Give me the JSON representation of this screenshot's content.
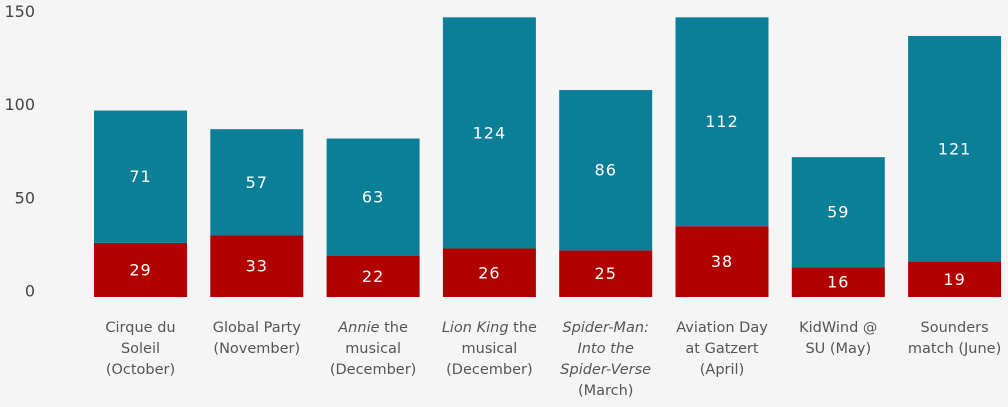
{
  "chart_data": {
    "type": "bar",
    "stacked": true,
    "title": "",
    "xlabel": "",
    "ylabel": "",
    "ylim": [
      0,
      155
    ],
    "yticks": [
      0,
      50,
      100,
      150
    ],
    "grid": false,
    "legend": "none",
    "categories": [
      {
        "lines": [
          [
            {
              "t": "Cirque du",
              "i": false
            }
          ],
          [
            {
              "t": "Soleil",
              "i": false
            }
          ],
          [
            {
              "t": "(October)",
              "i": false
            }
          ]
        ]
      },
      {
        "lines": [
          [
            {
              "t": "Global Party",
              "i": false
            }
          ],
          [
            {
              "t": "(November)",
              "i": false
            }
          ]
        ]
      },
      {
        "lines": [
          [
            {
              "t": "Annie",
              "i": true
            },
            {
              "t": " the",
              "i": false
            }
          ],
          [
            {
              "t": "musical",
              "i": false
            }
          ],
          [
            {
              "t": "(December)",
              "i": false
            }
          ]
        ]
      },
      {
        "lines": [
          [
            {
              "t": "Lion King",
              "i": true
            },
            {
              "t": " the",
              "i": false
            }
          ],
          [
            {
              "t": "musical",
              "i": false
            }
          ],
          [
            {
              "t": "(December)",
              "i": false
            }
          ]
        ]
      },
      {
        "lines": [
          [
            {
              "t": "Spider-Man:",
              "i": true
            }
          ],
          [
            {
              "t": "Into the",
              "i": true
            }
          ],
          [
            {
              "t": "Spider-Verse",
              "i": true
            }
          ],
          [
            {
              "t": "(March)",
              "i": false
            }
          ]
        ]
      },
      {
        "lines": [
          [
            {
              "t": "Aviation Day",
              "i": false
            }
          ],
          [
            {
              "t": "at Gatzert",
              "i": false
            }
          ],
          [
            {
              "t": "(April)",
              "i": false
            }
          ]
        ]
      },
      {
        "lines": [
          [
            {
              "t": "KidWind @",
              "i": false
            }
          ],
          [
            {
              "t": "SU (May)",
              "i": false
            }
          ]
        ]
      },
      {
        "lines": [
          [
            {
              "t": "Sounders",
              "i": false
            }
          ],
          [
            {
              "t": "match (June)",
              "i": false
            }
          ]
        ]
      }
    ],
    "series": [
      {
        "values": [
          29,
          33,
          22,
          26,
          25,
          38,
          16,
          19
        ],
        "color": "#b00000"
      },
      {
        "values": [
          71,
          57,
          63,
          124,
          86,
          112,
          59,
          121
        ],
        "color": "#0b7f98"
      }
    ]
  }
}
